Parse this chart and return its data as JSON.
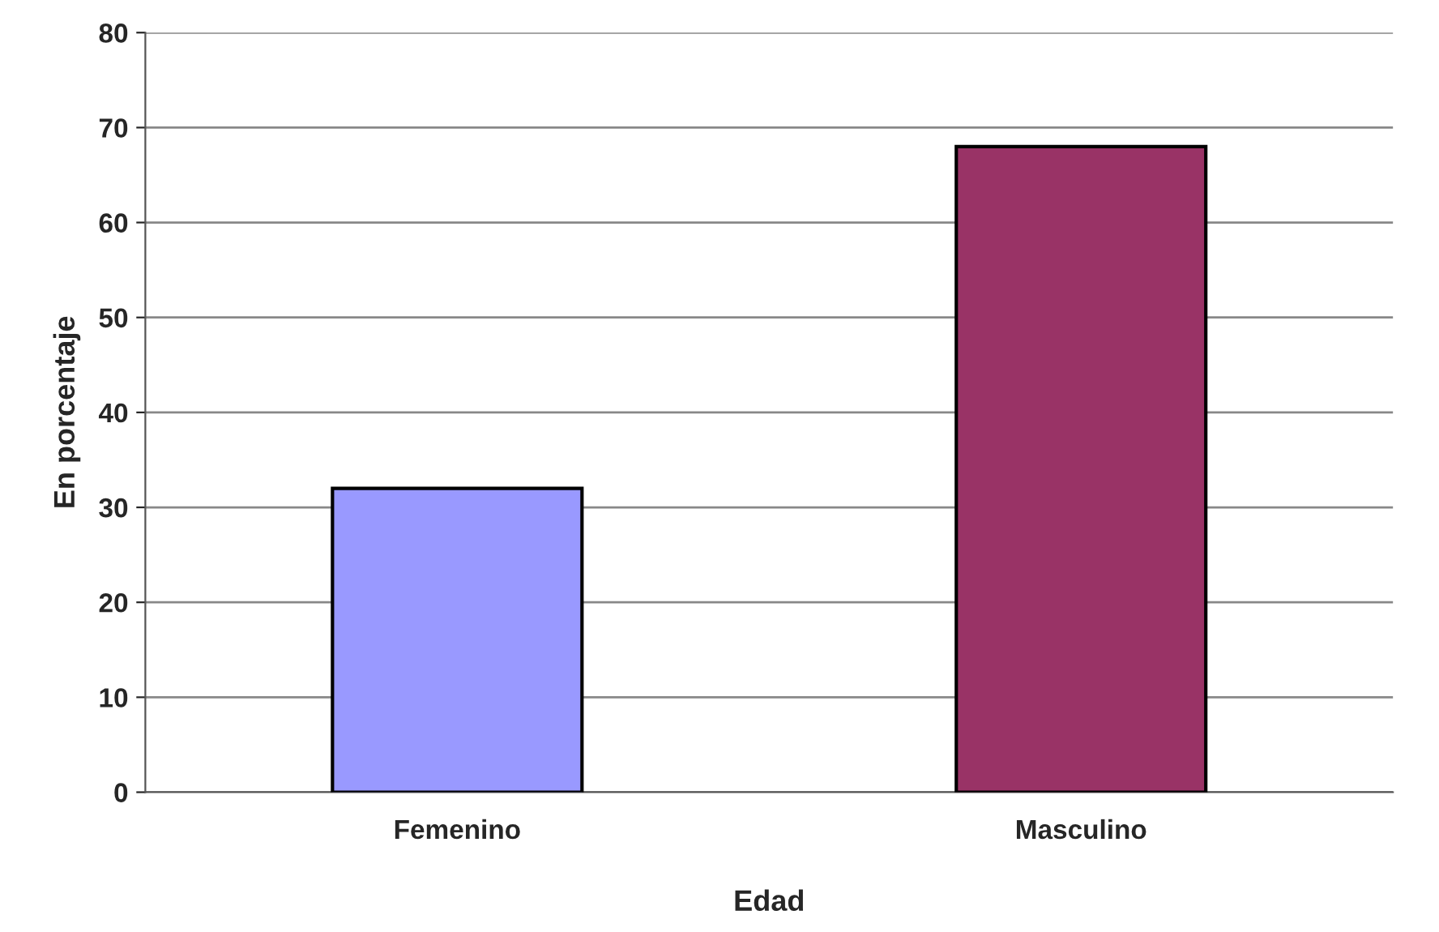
{
  "chart_data": {
    "type": "bar",
    "xlabel": "Edad",
    "ylabel": "En porcentaje",
    "categories": [
      "Femenino",
      "Masculino"
    ],
    "values": [
      32,
      68
    ],
    "colors": [
      "#9999ff",
      "#993366"
    ],
    "ylim": [
      0,
      80
    ],
    "yticks": [
      0,
      10,
      20,
      30,
      40,
      50,
      60,
      70,
      80
    ],
    "grid": "y",
    "legend": false
  }
}
